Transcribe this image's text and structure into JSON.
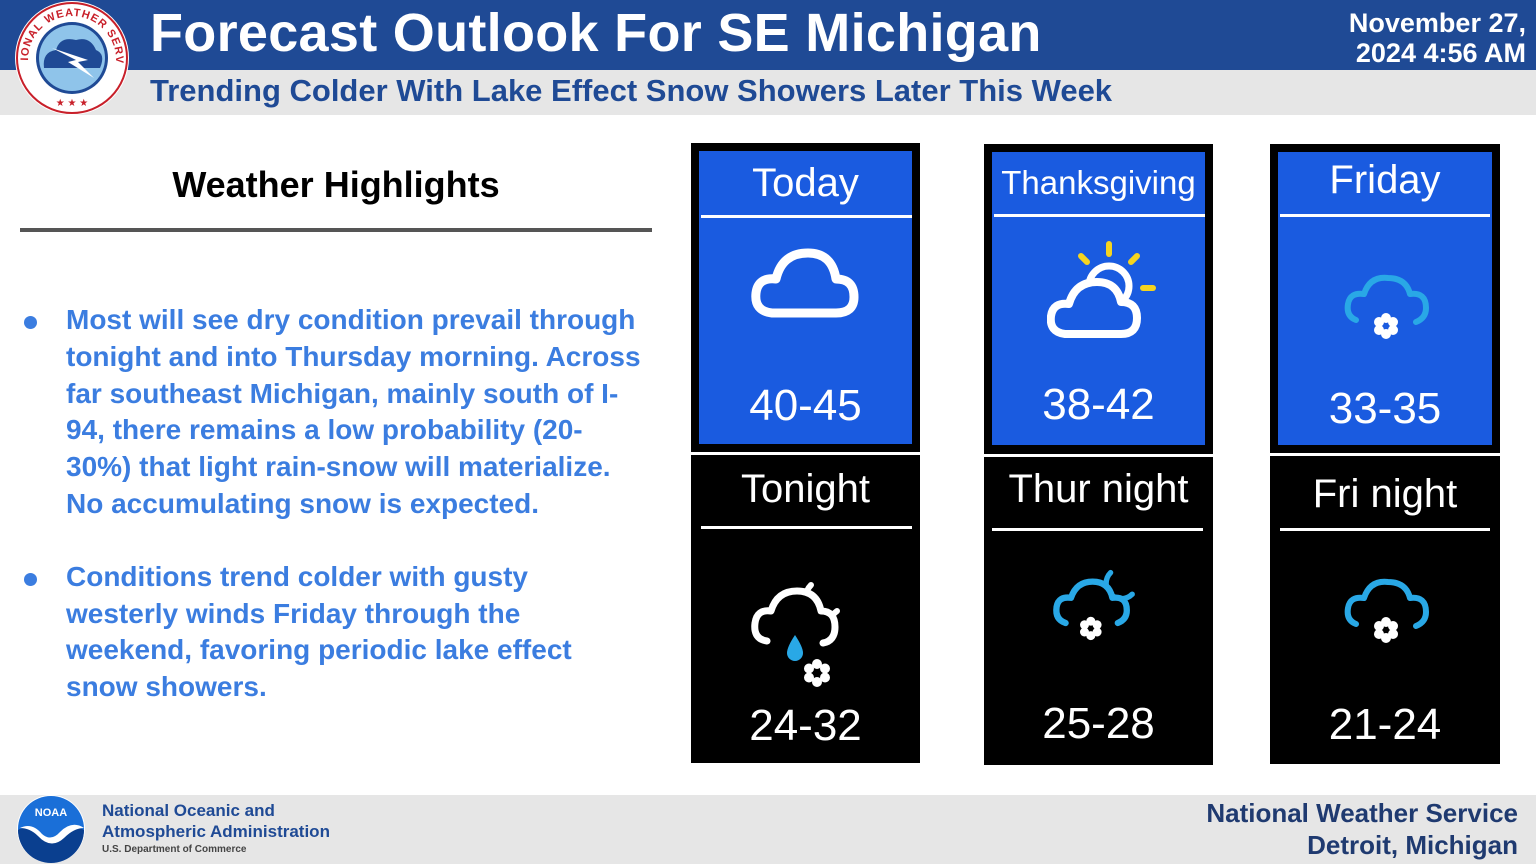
{
  "header": {
    "title": "Forecast Outlook For SE Michigan",
    "date_line1": "November 27,",
    "date_line2": "2024 4:56 AM",
    "subtitle": "Trending Colder With Lake Effect Snow Showers Later This Week",
    "logo_text": "NATIONAL WEATHER SERVICE"
  },
  "highlights": {
    "title": "Weather Highlights",
    "bullets": [
      "Most will see dry condition prevail through tonight and into Thursday morning. Across far southeast Michigan, mainly south of I-94, there remains a low probability (20-30%) that light rain-snow will materialize. No accumulating snow is expected.",
      "Conditions trend colder with gusty westerly winds Friday through the weekend, favoring periodic lake effect snow showers."
    ]
  },
  "forecast": {
    "day": [
      {
        "label": "Today",
        "temp": "40-45",
        "icon": "cloud-icon"
      },
      {
        "label": "Thanksgiving",
        "temp": "38-42",
        "icon": "partly-sunny-icon"
      },
      {
        "label": "Friday",
        "temp": "33-35",
        "icon": "snow-cloud-icon"
      }
    ],
    "night": [
      {
        "label": "Tonight",
        "temp": "24-32",
        "icon": "night-rain-snow-icon"
      },
      {
        "label": "Thur night",
        "temp": "25-28",
        "icon": "night-snow-icon"
      },
      {
        "label": "Fri night",
        "temp": "21-24",
        "icon": "snow-cloud-icon"
      }
    ]
  },
  "footer": {
    "noaa_line1": "National Oceanic and",
    "noaa_line2": "Atmospheric Administration",
    "noaa_dept": "U.S. Department of Commerce",
    "noaa_logo_text": "NOAA",
    "office_line1": "National Weather Service",
    "office_line2": "Detroit, Michigan"
  },
  "colors": {
    "header_blue": "#1f4a95",
    "card_blue": "#1a5be0",
    "bullet_blue": "#3b7de0",
    "icon_cyan": "#29a8e6",
    "sun_yellow": "#f5d41f"
  }
}
